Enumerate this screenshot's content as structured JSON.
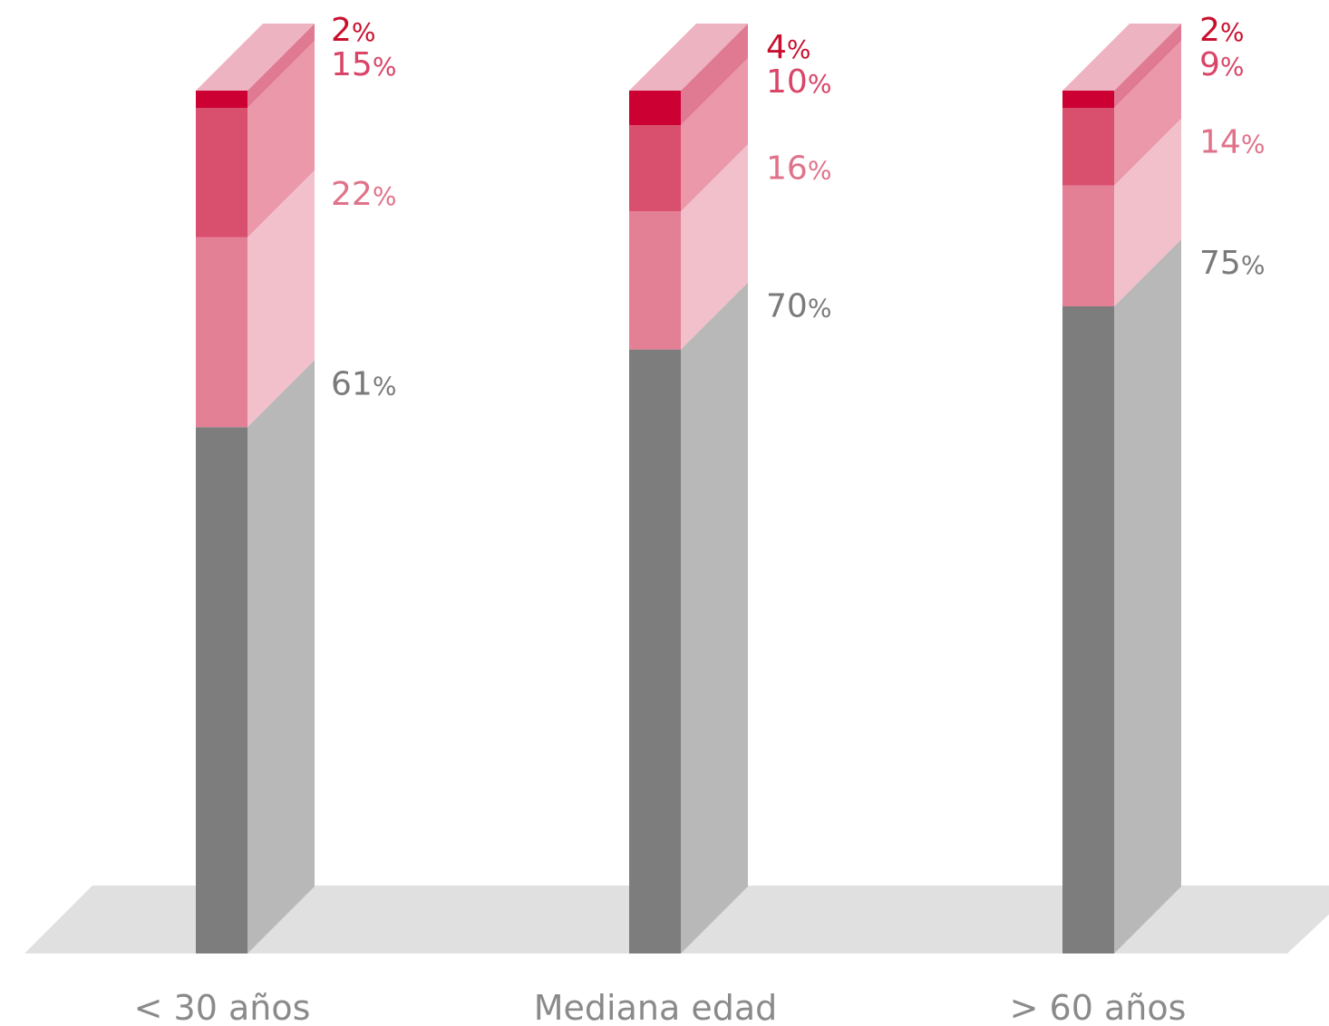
{
  "chart_data": {
    "type": "bar",
    "stacked": true,
    "three_d": true,
    "categories": [
      "< 30 años",
      "Mediana edad",
      "> 60 años"
    ],
    "series": [
      {
        "values": [
          61,
          70,
          75
        ],
        "colors": {
          "front": "#7d7d7d",
          "side": "#b8b8b8"
        },
        "label_color": "#7a7a7a"
      },
      {
        "values": [
          22,
          16,
          14
        ],
        "colors": {
          "front": "#e38096",
          "side": "#f2c0cb"
        },
        "label_color": "#e0728a"
      },
      {
        "values": [
          15,
          10,
          9
        ],
        "colors": {
          "front": "#d94f6e",
          "side": "#ea98aa"
        },
        "label_color": "#d94467"
      },
      {
        "values": [
          2,
          4,
          2
        ],
        "colors": {
          "front": "#cc0033",
          "side": "#e07a92",
          "top": "#eeb3c1"
        },
        "label_color": "#c8102e"
      }
    ],
    "value_suffix": "%",
    "ylim": [
      0,
      100
    ],
    "grid": false,
    "legend": "none",
    "floor_color": "#e0e0e0",
    "category_label_color": "#8a8a8a"
  }
}
